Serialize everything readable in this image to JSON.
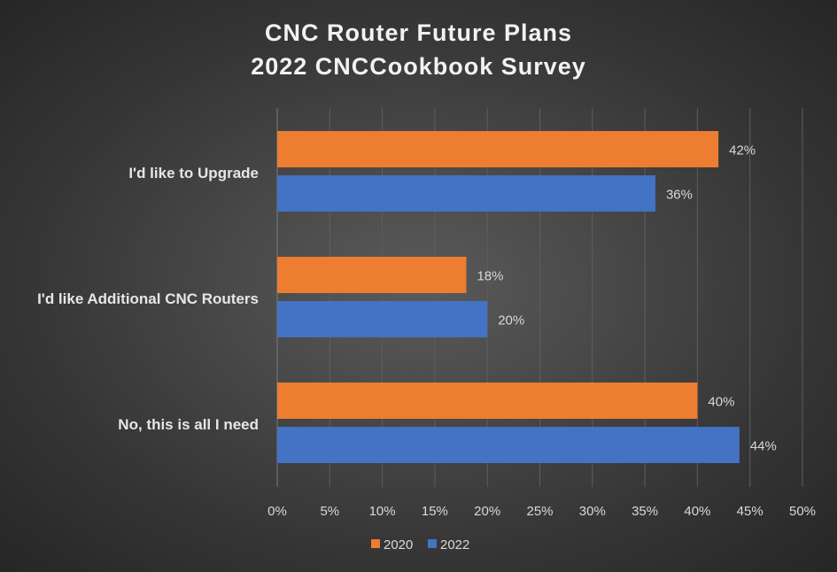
{
  "chart_data": {
    "type": "bar",
    "orientation": "horizontal",
    "title": "CNC Router Future Plans",
    "subtitle": "2022 CNCCookbook Survey",
    "categories": [
      "I'd like to Upgrade",
      "I'd like Additional CNC Routers",
      "No, this is all I need"
    ],
    "series": [
      {
        "name": "2020",
        "color": "#ED7D31",
        "values": [
          42,
          18,
          40
        ],
        "labels": [
          "42%",
          "18%",
          "40%"
        ]
      },
      {
        "name": "2022",
        "color": "#4472C4",
        "values": [
          36,
          20,
          44
        ],
        "labels": [
          "36%",
          "20%",
          "44%"
        ]
      }
    ],
    "xlim": [
      0,
      50
    ],
    "xticks": [
      "0%",
      "5%",
      "10%",
      "15%",
      "20%",
      "25%",
      "30%",
      "35%",
      "40%",
      "45%",
      "50%"
    ],
    "grid": true,
    "legend": "bottom",
    "background": "#404040"
  }
}
